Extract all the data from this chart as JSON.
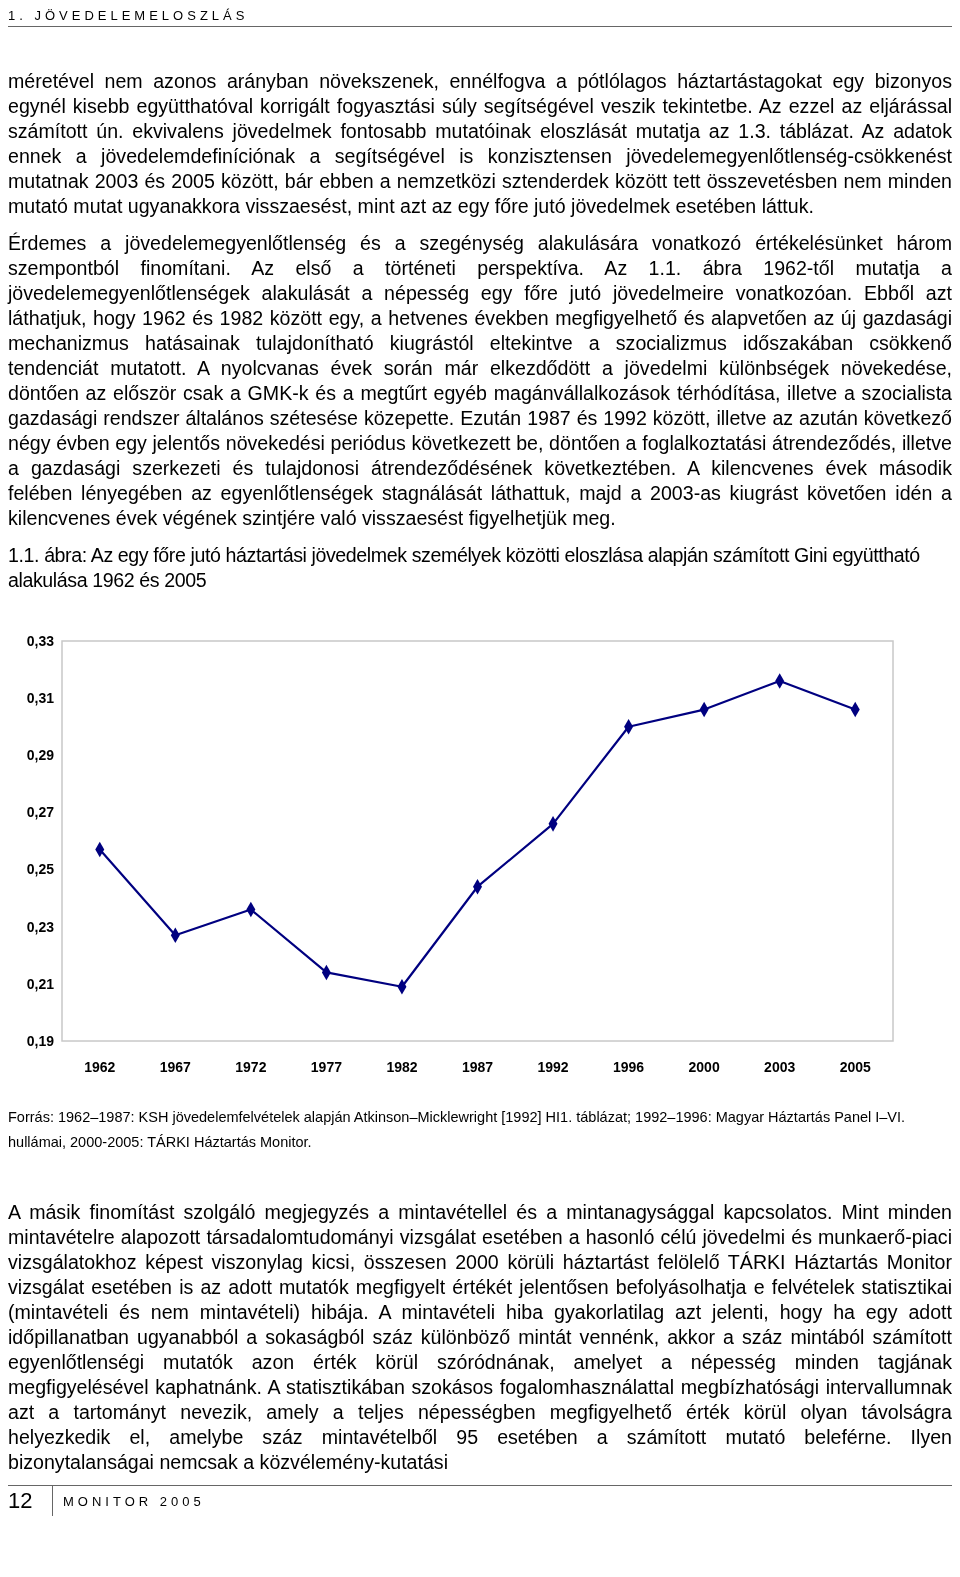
{
  "chart_data": {
    "type": "line",
    "title": "1.1. ábra: Az egy főre jutó háztartási jövedelmek személyek közötti eloszlása alapján számított Gini együttható alakulása 1962 és 2005",
    "categories": [
      "1962",
      "1967",
      "1972",
      "1977",
      "1982",
      "1987",
      "1992",
      "1996",
      "2000",
      "2003",
      "2005"
    ],
    "series": [
      {
        "color": "#000080",
        "values": [
          0.257,
          0.227,
          0.236,
          0.214,
          0.209,
          0.244,
          0.266,
          0.3,
          0.306,
          0.316,
          0.306
        ]
      }
    ],
    "ylim": [
      0.19,
      0.33
    ],
    "yticks": [
      {
        "value": 0.19,
        "label": "0,19"
      },
      {
        "value": 0.21,
        "label": "0,21"
      },
      {
        "value": 0.23,
        "label": "0,23"
      },
      {
        "value": 0.25,
        "label": "0,25"
      },
      {
        "value": 0.27,
        "label": "0,27"
      },
      {
        "value": 0.29,
        "label": "0,29"
      },
      {
        "value": 0.31,
        "label": "0,31"
      },
      {
        "value": 0.33,
        "label": "0,33"
      }
    ],
    "marker": "diamond",
    "line_style": "solid",
    "annotations": [
      "1. JÖVEDELEMELOSZLÁS",
      "méretével nem azonos arányban növekszenek, ennélfogva a pótlólagos háztartástagokat egy bizonyos egynél kisebb együtthatóval korrigált fogyasztási súly segítségével veszik tekintetbe. Az ezzel az eljárással számított ún. ekvivalens jövedelmek fontosabb mutatóinak eloszlását mutatja az 1.3. táblázat. Az adatok ennek a jövedelemdefiníciónak a segítségével is konzisztensen jövedelemegyenlőtlenség-csökkenést mutatnak 2003 és 2005 között, bár ebben a nemzetközi sztenderdek között tett összevetésben nem minden mutató mutat ugyanakkora visszaesést, mint azt az egy főre jutó jövedelmek esetében láttuk.",
      "Érdemes a jövedelemegyenlőtlenség és a szegénység alakulására vonatkozó értékelésünket három szempontból finomítani. Az első a történeti perspektíva. Az 1.1. ábra 1962-től mutatja a jövedelemegyenlőtlenségek alakulását a népesség egy főre jutó jövedelmeire vonatkozóan. Ebből azt láthatjuk, hogy 1962 és 1982 között egy, a hetvenes években megfigyelhető és alapvetően az új gazdasági mechanizmus hatásainak tulajdonítható kiugrástól eltekintve a szocializmus időszakában csökkenő tendenciát mutatott. A nyolcvanas évek során már elkezdődött a jövedelmi különbségek növekedése, döntően az először csak a GMK-k és a megtűrt egyéb magánvállalkozások térhódítása, illetve a szocialista gazdasági rendszer általános szétesése közepette. Ezután 1987 és 1992 között, illetve az azután következő négy évben egy jelentős növekedési periódus következett be, döntően a foglalkoztatási átrendeződés, illetve a gazdasági szerkezeti és tulajdonosi átrendeződésének következtében. A kilencvenes évek második felében lényegében az egyenlőtlenségek stagnálását láthattuk, majd a 2003-as kiugrást követően idén a kilencvenes évek végének szintjére való visszaesést figyelhetjük meg.",
      "Forrás: 1962–1987: KSH jövedelemfelvételek alapján Atkinson–Micklewright [1992] HI1. táblázat; 1992–1996: Magyar Háztartás Panel I–VI. hullámai, 2000-2005: TÁRKI Háztartás Monitor.",
      "A másik finomítást szolgáló megjegyzés a mintavétellel és a mintanagysággal kapcsolatos. Mint minden mintavételre alapozott társadalomtudományi vizsgálat esetében a hasonló célú jövedelmi és munkaerő-piaci vizsgálatokhoz képest viszonylag kicsi, összesen 2000 körüli háztartást felölelő TÁRKI Háztartás Monitor vizsgálat esetében is az adott mutatók megfigyelt értékét jelentősen befolyásolhatja e felvételek statisztikai (mintavételi és nem mintavételi) hibája. A mintavételi hiba gyakorlatilag azt jelenti, hogy ha egy adott időpillanatban ugyanabból a sokaságból száz különböző mintát vennénk, akkor a száz mintából számított egyenlőtlenségi mutatók azon érték körül szóródnának, amelyet a népesség minden tagjának megfigyelésével kaphatnánk. A statisztikában szokásos fogalomhasználattal megbízhatósági intervallumnak azt a tartományt nevezik, amely a teljes népességben megfigyelhető érték körül olyan távolságra helyezkedik el, amelybe száz mintavételből 95 esetében a számított mutató beleférne. Ilyen bizonytalanságai nemcsak a közvélemény-kutatási",
      "12",
      "MONITOR 2005"
    ]
  }
}
